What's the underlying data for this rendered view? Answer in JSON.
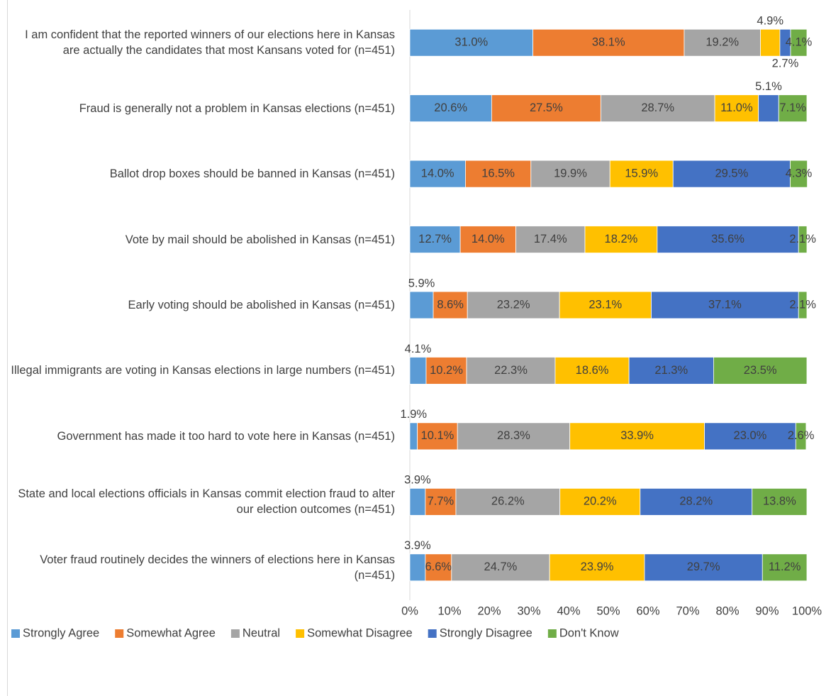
{
  "chart_data": {
    "type": "stacked_bar_horizontal",
    "categories": [
      "I am confident that the reported winners of our elections here in Kansas are actually the candidates that most Kansans voted for (n=451)",
      "Fraud is generally not a problem in Kansas elections (n=451)",
      "Ballot drop boxes should be banned in Kansas (n=451)",
      "Vote by mail should be abolished in Kansas (n=451)",
      "Early voting should be abolished in Kansas (n=451)",
      "Illegal immigrants are voting in Kansas elections in large numbers (n=451)",
      "Government has made it too hard to vote here in Kansas (n=451)",
      "State and local elections officials in Kansas commit election fraud to alter our election outcomes (n=451)",
      "Voter fraud routinely decides the winners of elections here in Kansas (n=451)"
    ],
    "series": [
      {
        "name": "Strongly Agree",
        "color": "#5b9bd5",
        "values": [
          31.0,
          20.6,
          14.0,
          12.7,
          5.9,
          4.1,
          1.9,
          3.9,
          3.9
        ],
        "value_labels": [
          "31.0%",
          "20.6%",
          "14.0%",
          "12.7%",
          "5.9%",
          "4.1%",
          "1.9%",
          "3.9%",
          "3.9%"
        ]
      },
      {
        "name": "Somewhat Agree",
        "color": "#ed7d31",
        "values": [
          38.1,
          27.5,
          16.5,
          14.0,
          8.6,
          10.2,
          10.1,
          7.7,
          6.6
        ],
        "value_labels": [
          "38.1%",
          "27.5%",
          "16.5%",
          "14.0%",
          "8.6%",
          "10.2%",
          "10.1%",
          "7.7%",
          "6.6%"
        ]
      },
      {
        "name": "Neutral",
        "color": "#a5a5a5",
        "values": [
          19.2,
          28.7,
          19.9,
          17.4,
          23.2,
          22.3,
          28.3,
          26.2,
          24.7
        ],
        "value_labels": [
          "19.2%",
          "28.7%",
          "19.9%",
          "17.4%",
          "23.2%",
          "22.3%",
          "28.3%",
          "26.2%",
          "24.7%"
        ]
      },
      {
        "name": "Somewhat Disagree",
        "color": "#ffc000",
        "values": [
          4.9,
          11.0,
          15.9,
          18.2,
          23.1,
          18.6,
          33.9,
          20.2,
          23.9
        ],
        "value_labels": [
          "4.9%",
          "11.0%",
          "15.9%",
          "18.2%",
          "23.1%",
          "18.6%",
          "33.9%",
          "20.2%",
          "23.9%"
        ]
      },
      {
        "name": "Strongly Disagree",
        "color": "#4472c4",
        "values": [
          2.7,
          5.1,
          29.5,
          35.6,
          37.1,
          21.3,
          23.0,
          28.2,
          29.7
        ],
        "value_labels": [
          "2.7%",
          "5.1%",
          "29.5%",
          "35.6%",
          "37.1%",
          "21.3%",
          "23.0%",
          "28.2%",
          "29.7%"
        ]
      },
      {
        "name": "Don't Know",
        "color": "#70ad47",
        "values": [
          4.1,
          7.1,
          4.3,
          2.1,
          2.1,
          23.5,
          2.6,
          13.8,
          11.2
        ],
        "value_labels": [
          "4.1%",
          "7.1%",
          "4.3%",
          "2.1%",
          "2.1%",
          "23.5%",
          "2.6%",
          "13.8%",
          "11.2%"
        ]
      }
    ],
    "xlim": [
      0,
      100
    ],
    "xticks": [
      {
        "value": 0,
        "label": "0%"
      },
      {
        "value": 10,
        "label": "10%"
      },
      {
        "value": 20,
        "label": "20%"
      },
      {
        "value": 30,
        "label": "30%"
      },
      {
        "value": 40,
        "label": "40%"
      },
      {
        "value": 50,
        "label": "50%"
      },
      {
        "value": 60,
        "label": "60%"
      },
      {
        "value": 70,
        "label": "70%"
      },
      {
        "value": 80,
        "label": "80%"
      },
      {
        "value": 90,
        "label": "90%"
      },
      {
        "value": 100,
        "label": "100%"
      }
    ],
    "legend": "bottom"
  }
}
